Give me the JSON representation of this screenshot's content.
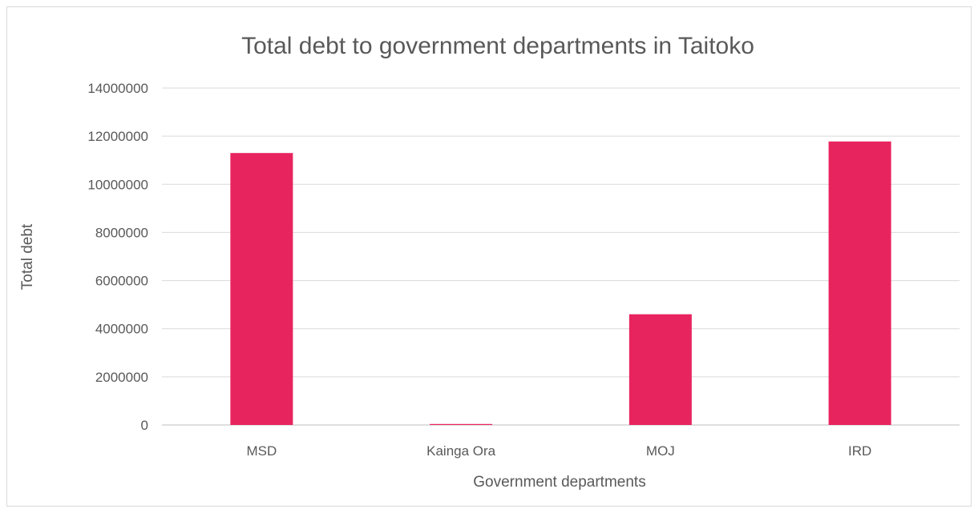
{
  "chart_data": {
    "type": "bar",
    "title": "Total debt to government departments in Taitoko",
    "xlabel": "Government departments",
    "ylabel": "Total debt",
    "categories": [
      "MSD",
      "Kainga Ora",
      "MOJ",
      "IRD"
    ],
    "values": [
      11300000,
      40000,
      4600000,
      11780000
    ],
    "ylim": [
      0,
      14000000
    ],
    "yticks": [
      "0",
      "2000000",
      "4000000",
      "6000000",
      "8000000",
      "10000000",
      "12000000",
      "14000000"
    ],
    "ytick_values": [
      0,
      2000000,
      4000000,
      6000000,
      8000000,
      10000000,
      12000000,
      14000000
    ],
    "bar_color": "#E8245F",
    "grid": true,
    "legend": "none"
  }
}
